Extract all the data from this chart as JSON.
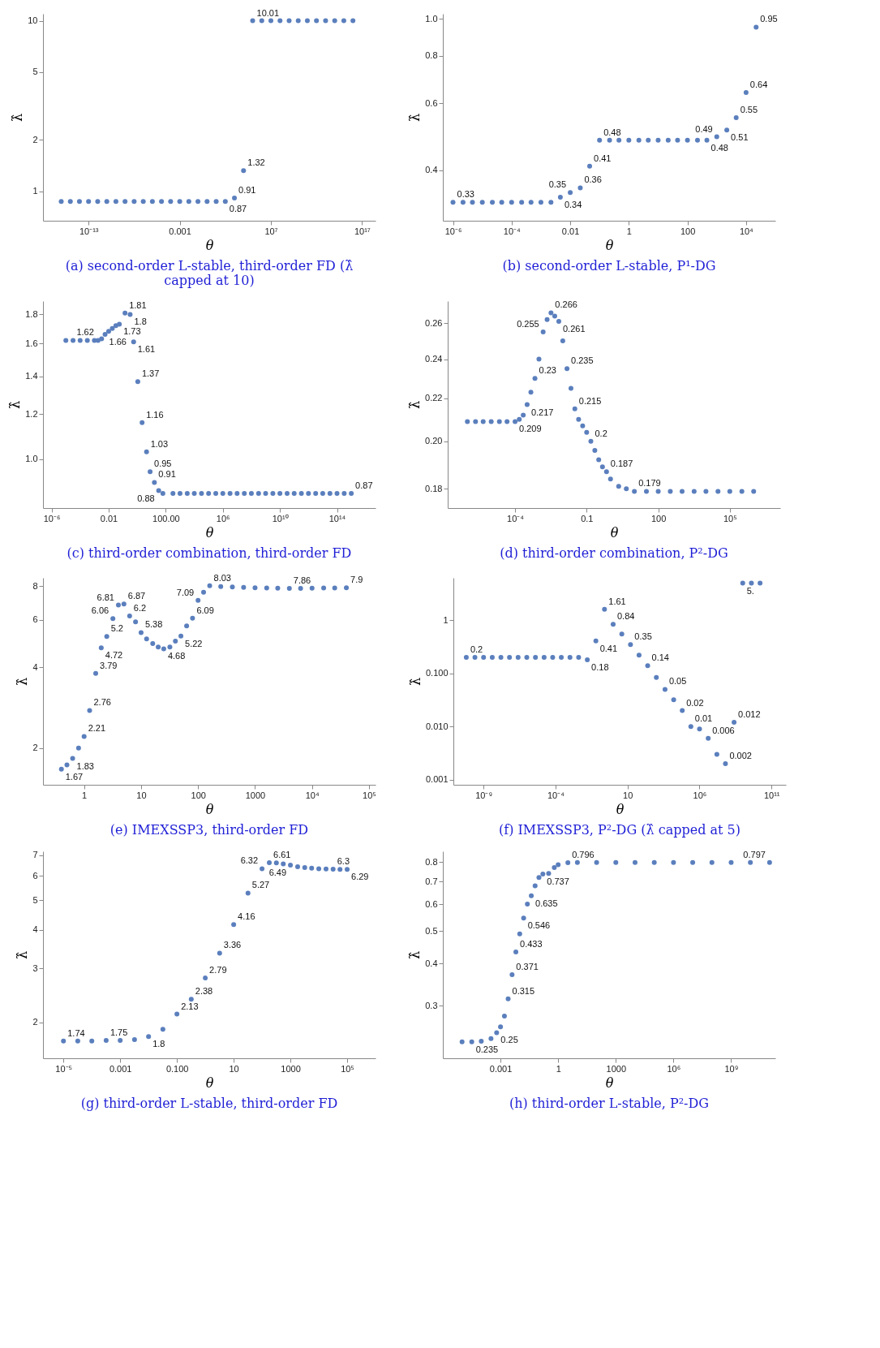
{
  "chart_data": [
    {
      "type": "scatter",
      "title": "(a) second-order L-stable, third-order FD (λ̂ capped at 10)",
      "xlabel": "θ",
      "ylabel": "λ̂",
      "log": "xy",
      "marker": "circle",
      "color": "#5b7fbd",
      "x": [
        1e-16,
        1e-15,
        1e-14,
        1e-13,
        1e-12,
        1e-11,
        1e-10,
        1e-09,
        1e-08,
        1e-07,
        1e-06,
        1e-05,
        0.0001,
        0.001,
        0.01,
        0.1,
        1,
        10,
        100,
        1000,
        10000.0,
        100000.0,
        1000000.0,
        10000000.0,
        100000000.0,
        1000000000.0,
        10000000000.0,
        100000000000.0,
        1000000000000.0,
        10000000000000.0,
        100000000000000.0,
        1000000000000000.0,
        1e+16
      ],
      "values": [
        0.87,
        0.87,
        0.87,
        0.87,
        0.87,
        0.87,
        0.87,
        0.87,
        0.87,
        0.87,
        0.87,
        0.87,
        0.87,
        0.87,
        0.87,
        0.87,
        0.87,
        0.87,
        0.87,
        0.91,
        1.32,
        10.01,
        10.01,
        10.01,
        10.01,
        10.01,
        10.01,
        10.01,
        10.01,
        10.01,
        10.01,
        10.01,
        10.01
      ],
      "xlim": [
        1e-18,
        3e+18
      ],
      "ylim": [
        0.67,
        11
      ],
      "xticks": [
        {
          "value": 1e-13,
          "label": "10⁻¹³"
        },
        0.001,
        {
          "value": 10000000.0,
          "label": "10⁷"
        },
        {
          "value": 1e+17,
          "label": "10¹⁷"
        }
      ],
      "yticks": [
        1,
        2,
        5,
        10
      ],
      "annotations": [
        {
          "text": "10.01",
          "x": 100000.0,
          "y": 10.01
        },
        {
          "text": "1.32",
          "x": 10000.0,
          "y": 1.32
        },
        {
          "text": "0.91",
          "x": 1000,
          "y": 0.91
        },
        {
          "text": "0.87",
          "x": 100,
          "y": 0.87
        }
      ]
    },
    {
      "type": "scatter",
      "title": "(b) second-order L-stable, P¹-DG",
      "xlabel": "θ",
      "ylabel": "λ̂",
      "log": "xy",
      "marker": "circle",
      "color": "#5b7fbd",
      "x": [
        1e-06,
        2.2e-06,
        4.6e-06,
        1e-05,
        2.2e-05,
        4.6e-05,
        0.0001,
        0.00022,
        0.00046,
        0.001,
        0.0022,
        0.0046,
        0.01,
        0.022,
        0.046,
        0.1,
        0.22,
        0.46,
        1,
        2.2,
        4.6,
        10,
        22,
        46,
        100,
        220,
        460,
        1000,
        2200,
        4600,
        10000.0,
        22000.0
      ],
      "values": [
        0.33,
        0.33,
        0.33,
        0.33,
        0.33,
        0.33,
        0.33,
        0.33,
        0.33,
        0.33,
        0.33,
        0.34,
        0.35,
        0.36,
        0.41,
        0.48,
        0.48,
        0.48,
        0.48,
        0.48,
        0.48,
        0.48,
        0.48,
        0.48,
        0.48,
        0.48,
        0.48,
        0.49,
        0.51,
        0.55,
        0.64,
        0.95
      ],
      "xlim": [
        4.5e-07,
        100000.0
      ],
      "ylim": [
        0.295,
        1.03
      ],
      "xticks": [
        {
          "value": 1e-06,
          "label": "10⁻⁶"
        },
        {
          "value": 0.0001,
          "label": "10⁻⁴"
        },
        0.01,
        1,
        100,
        {
          "value": 10000.0,
          "label": "10⁴"
        }
      ],
      "yticks": [
        0.4,
        0.6,
        0.8,
        {
          "value": 1,
          "label": "1.0"
        }
      ],
      "annotations": [
        {
          "text": "0.33",
          "x": 1e-06,
          "y": 0.33
        },
        {
          "text": "0.34",
          "x": 0.0046,
          "y": 0.34
        },
        {
          "text": "0.35",
          "x": 0.01,
          "y": 0.35
        },
        {
          "text": "0.36",
          "x": 0.022,
          "y": 0.36
        },
        {
          "text": "0.41",
          "x": 0.046,
          "y": 0.41
        },
        {
          "text": "0.48",
          "x": 0.1,
          "y": 0.48
        },
        {
          "text": "0.48",
          "x": 460,
          "y": 0.48
        },
        {
          "text": "0.49",
          "x": 1000,
          "y": 0.49
        },
        {
          "text": "0.51",
          "x": 2200,
          "y": 0.51
        },
        {
          "text": "0.55",
          "x": 4600,
          "y": 0.55
        },
        {
          "text": "0.64",
          "x": 10000.0,
          "y": 0.64
        },
        {
          "text": "0.95",
          "x": 22000.0,
          "y": 0.95
        }
      ]
    },
    {
      "type": "scatter",
      "title": "(c) third-order combination, third-order FD",
      "xlabel": "θ",
      "ylabel": "λ̂",
      "log": "xy",
      "marker": "circle",
      "color": "#5b7fbd",
      "x": [
        1e-05,
        3.2e-05,
        0.0001,
        0.00032,
        0.001,
        0.0018,
        0.0032,
        0.0056,
        0.01,
        0.018,
        0.032,
        0.056,
        0.14,
        0.32,
        0.56,
        1.1,
        2.2,
        4.5,
        8,
        16,
        32,
        63,
        320,
        1000,
        3200,
        10000.0,
        32000.0,
        100000.0,
        320000.0,
        1000000.0,
        3200000.0,
        10000000.0,
        32000000.0,
        100000000.0,
        320000000.0,
        1000000000.0,
        3200000000.0,
        10000000000.0,
        32000000000.0,
        100000000000.0,
        320000000000.0,
        1000000000000.0,
        3200000000000.0,
        10000000000000.0,
        32000000000000.0,
        100000000000000.0,
        320000000000000.0,
        1000000000000000.0
      ],
      "values": [
        1.62,
        1.62,
        1.62,
        1.62,
        1.62,
        1.62,
        1.63,
        1.66,
        1.68,
        1.7,
        1.72,
        1.73,
        1.81,
        1.8,
        1.61,
        1.37,
        1.16,
        1.03,
        0.95,
        0.91,
        0.88,
        0.87,
        0.87,
        0.87,
        0.87,
        0.87,
        0.87,
        0.87,
        0.87,
        0.87,
        0.87,
        0.87,
        0.87,
        0.87,
        0.87,
        0.87,
        0.87,
        0.87,
        0.87,
        0.87,
        0.87,
        0.87,
        0.87,
        0.87,
        0.87,
        0.87,
        0.87,
        0.87
      ],
      "xlim": [
        2.5e-07,
        5e+16
      ],
      "ylim": [
        0.82,
        1.9
      ],
      "xticks": [
        {
          "value": 1e-06,
          "label": "10⁻⁶"
        },
        0.01,
        {
          "value": 100,
          "label": "100.00"
        },
        {
          "value": 1000000.0,
          "label": "10⁶"
        },
        {
          "value": 10000000000.0,
          "label": "10¹⁰"
        },
        {
          "value": 100000000000000.0,
          "label": "10¹⁴"
        }
      ],
      "yticks": [
        {
          "value": 1,
          "label": "1.0"
        },
        1.2,
        1.4,
        1.6,
        1.8
      ],
      "annotations": [
        {
          "text": "1.81",
          "x": 0.14,
          "y": 1.81
        },
        {
          "text": "1.8",
          "x": 0.32,
          "y": 1.8
        },
        {
          "text": "1.66",
          "x": 0.0056,
          "y": 1.66
        },
        {
          "text": "1.62",
          "x": 0.0018,
          "y": 1.62
        },
        {
          "text": "1.73",
          "x": 0.056,
          "y": 1.73
        },
        {
          "text": "1.61",
          "x": 0.56,
          "y": 1.61
        },
        {
          "text": "1.37",
          "x": 1.1,
          "y": 1.37
        },
        {
          "text": "1.16",
          "x": 2.2,
          "y": 1.16
        },
        {
          "text": "1.03",
          "x": 4.5,
          "y": 1.03
        },
        {
          "text": "0.95",
          "x": 8,
          "y": 0.95
        },
        {
          "text": "0.91",
          "x": 16,
          "y": 0.91
        },
        {
          "text": "0.88",
          "x": 32,
          "y": 0.88
        },
        {
          "text": "0.87",
          "x": 1000000000000000.0,
          "y": 0.87
        }
      ]
    },
    {
      "type": "scatter",
      "title": "(d) third-order combination, P²-DG",
      "xlabel": "θ",
      "ylabel": "λ̂",
      "log": "xy",
      "marker": "circle",
      "color": "#5b7fbd",
      "x": [
        1e-06,
        2.2e-06,
        4.6e-06,
        1e-05,
        2.2e-05,
        4.6e-05,
        0.0001,
        0.00015,
        0.00022,
        0.00032,
        0.00046,
        0.00068,
        0.001,
        0.0015,
        0.0022,
        0.0032,
        0.0046,
        0.0068,
        0.01,
        0.015,
        0.022,
        0.032,
        0.046,
        0.068,
        0.1,
        0.15,
        0.22,
        0.32,
        0.46,
        0.68,
        1,
        2.2,
        4.6,
        10,
        32,
        100,
        320,
        1000,
        3200,
        10000.0,
        32000.0,
        100000.0,
        320000.0,
        1000000.0
      ],
      "values": [
        0.209,
        0.209,
        0.209,
        0.209,
        0.209,
        0.209,
        0.209,
        0.21,
        0.212,
        0.217,
        0.223,
        0.23,
        0.24,
        0.255,
        0.262,
        0.266,
        0.264,
        0.261,
        0.25,
        0.235,
        0.225,
        0.215,
        0.21,
        0.207,
        0.204,
        0.2,
        0.196,
        0.192,
        0.189,
        0.187,
        0.184,
        0.181,
        0.18,
        0.179,
        0.179,
        0.179,
        0.179,
        0.179,
        0.179,
        0.179,
        0.179,
        0.179,
        0.179,
        0.179
      ],
      "xlim": [
        1.5e-07,
        13000000.0
      ],
      "ylim": [
        0.1725,
        0.273
      ],
      "xticks": [
        {
          "value": 0.0001,
          "label": "10⁻⁴"
        },
        0.1,
        100,
        {
          "value": 100000.0,
          "label": "10⁵"
        }
      ],
      "yticks": [
        0.18,
        {
          "value": 0.2,
          "label": "0.20"
        },
        0.22,
        0.24,
        0.26
      ],
      "annotations": [
        {
          "text": "0.266",
          "x": 0.0032,
          "y": 0.266
        },
        {
          "text": "0.261",
          "x": 0.0068,
          "y": 0.261
        },
        {
          "text": "0.255",
          "x": 0.0015,
          "y": 0.255
        },
        {
          "text": "0.23",
          "x": 0.00068,
          "y": 0.23
        },
        {
          "text": "0.217",
          "x": 0.00032,
          "y": 0.217
        },
        {
          "text": "0.209",
          "x": 0.0001,
          "y": 0.209
        },
        {
          "text": "0.235",
          "x": 0.015,
          "y": 0.235
        },
        {
          "text": "0.215",
          "x": 0.032,
          "y": 0.215
        },
        {
          "text": "0.2",
          "x": 0.15,
          "y": 0.2
        },
        {
          "text": "0.187",
          "x": 0.68,
          "y": 0.187
        },
        {
          "text": "0.179",
          "x": 10,
          "y": 0.179
        }
      ]
    },
    {
      "type": "scatter",
      "title": "(e) IMEXSSP3, third-order FD",
      "xlabel": "θ",
      "ylabel": "λ̂",
      "log": "xy",
      "marker": "circle",
      "color": "#5b7fbd",
      "x": [
        0.4,
        0.5,
        0.63,
        0.8,
        1,
        1.25,
        1.6,
        2,
        2.5,
        3.2,
        4,
        5,
        6.3,
        8,
        10,
        12.5,
        16,
        20,
        25,
        32,
        40,
        50,
        63,
        80,
        100,
        125,
        160,
        250,
        400,
        630,
        1000,
        1600,
        2500,
        4000,
        6300,
        10000,
        16000,
        25000,
        40000
      ],
      "values": [
        1.67,
        1.73,
        1.83,
        2.0,
        2.21,
        2.76,
        3.79,
        4.72,
        5.2,
        6.06,
        6.81,
        6.87,
        6.2,
        5.9,
        5.38,
        5.1,
        4.9,
        4.75,
        4.68,
        4.75,
        5.0,
        5.22,
        5.7,
        6.09,
        7.09,
        7.6,
        8.03,
        7.98,
        7.95,
        7.92,
        7.9,
        7.88,
        7.87,
        7.86,
        7.86,
        7.87,
        7.88,
        7.89,
        7.9
      ],
      "xlim": [
        0.19,
        130000.0
      ],
      "ylim": [
        1.46,
        8.6
      ],
      "xticks": [
        1,
        10,
        100,
        1000,
        {
          "value": 10000.0,
          "label": "10⁴"
        },
        {
          "value": 100000.0,
          "label": "10⁵"
        }
      ],
      "yticks": [
        2,
        4,
        6,
        8
      ],
      "annotations": [
        {
          "text": "1.67",
          "x": 0.4,
          "y": 1.67
        },
        {
          "text": "1.83",
          "x": 0.63,
          "y": 1.83
        },
        {
          "text": "2.21",
          "x": 1,
          "y": 2.21
        },
        {
          "text": "2.76",
          "x": 1.25,
          "y": 2.76
        },
        {
          "text": "3.79",
          "x": 1.6,
          "y": 3.79
        },
        {
          "text": "4.72",
          "x": 2,
          "y": 4.72
        },
        {
          "text": "5.2",
          "x": 2.5,
          "y": 5.2
        },
        {
          "text": "6.06",
          "x": 3.2,
          "y": 6.06
        },
        {
          "text": "6.81",
          "x": 4,
          "y": 6.81
        },
        {
          "text": "6.87",
          "x": 5,
          "y": 6.87
        },
        {
          "text": "6.2",
          "x": 6.3,
          "y": 6.2
        },
        {
          "text": "5.38",
          "x": 10,
          "y": 5.38
        },
        {
          "text": "4.68",
          "x": 25,
          "y": 4.68
        },
        {
          "text": "5.22",
          "x": 50,
          "y": 5.22
        },
        {
          "text": "6.09",
          "x": 80,
          "y": 6.09
        },
        {
          "text": "7.09",
          "x": 100,
          "y": 7.09
        },
        {
          "text": "8.03",
          "x": 160,
          "y": 8.03
        },
        {
          "text": "7.86",
          "x": 4000,
          "y": 7.86
        },
        {
          "text": "7.9",
          "x": 40000,
          "y": 7.9
        }
      ]
    },
    {
      "type": "scatter",
      "title": "(f) IMEXSSP3, P²-DG (λ̂ capped at 5)",
      "xlabel": "θ",
      "ylabel": "λ̂",
      "log": "xy",
      "marker": "circle",
      "color": "#5b7fbd",
      "x": [
        6.3e-11,
        2.5e-10,
        1e-09,
        4e-09,
        1.6e-08,
        6.3e-08,
        2.5e-07,
        1e-06,
        4e-06,
        1.6e-05,
        6.3e-05,
        0.00025,
        0.001,
        0.004,
        0.016,
        0.063,
        0.25,
        1,
        4,
        16,
        63,
        250,
        1000,
        4000,
        16000,
        63000,
        250000.0,
        1000000.0,
        4000000.0,
        16000000.0,
        63000000.0,
        250000000.0,
        1000000000.0,
        4000000000.0,
        16000000000.0
      ],
      "values": [
        0.2,
        0.2,
        0.2,
        0.2,
        0.2,
        0.2,
        0.2,
        0.2,
        0.2,
        0.2,
        0.2,
        0.2,
        0.2,
        0.2,
        0.18,
        0.41,
        1.61,
        0.84,
        0.55,
        0.35,
        0.22,
        0.14,
        0.084,
        0.05,
        0.032,
        0.02,
        0.01,
        0.009,
        0.006,
        0.003,
        0.002,
        0.012,
        5,
        5,
        5
      ],
      "xlim": [
        8e-12,
        1000000000000.0
      ],
      "ylim": [
        0.0008,
        6.3
      ],
      "xticks": [
        {
          "value": 1e-09,
          "label": "10⁻⁹"
        },
        {
          "value": 0.0001,
          "label": "10⁻⁴"
        },
        10,
        {
          "value": 1000000.0,
          "label": "10⁶"
        },
        {
          "value": 100000000000.0,
          "label": "10¹¹"
        }
      ],
      "yticks": [
        0.001,
        {
          "value": 0.01,
          "label": "0.010"
        },
        {
          "value": 0.1,
          "label": "0.100"
        },
        1
      ],
      "annotations": [
        {
          "text": "5.",
          "x": 1000000000.0,
          "y": 5
        },
        {
          "text": "1.61",
          "x": 0.25,
          "y": 1.61
        },
        {
          "text": "0.84",
          "x": 1,
          "y": 0.84
        },
        {
          "text": "0.41",
          "x": 0.063,
          "y": 0.41
        },
        {
          "text": "0.35",
          "x": 16,
          "y": 0.35
        },
        {
          "text": "0.2",
          "x": 6.3e-11,
          "y": 0.2
        },
        {
          "text": "0.18",
          "x": 0.016,
          "y": 0.18
        },
        {
          "text": "0.14",
          "x": 250,
          "y": 0.14
        },
        {
          "text": "0.05",
          "x": 4000,
          "y": 0.05
        },
        {
          "text": "0.02",
          "x": 63000,
          "y": 0.02
        },
        {
          "text": "0.01",
          "x": 250000.0,
          "y": 0.01
        },
        {
          "text": "0.006",
          "x": 4000000.0,
          "y": 0.006
        },
        {
          "text": "0.002",
          "x": 63000000.0,
          "y": 0.002
        },
        {
          "text": "0.012",
          "x": 250000000.0,
          "y": 0.012
        }
      ]
    },
    {
      "type": "scatter",
      "title": "(g) third-order L-stable, third-order FD",
      "xlabel": "θ",
      "ylabel": "λ̂",
      "log": "xy",
      "marker": "circle",
      "color": "#5b7fbd",
      "x": [
        1e-05,
        3.2e-05,
        0.0001,
        0.00032,
        0.001,
        0.0032,
        0.01,
        0.032,
        0.1,
        0.32,
        1,
        3.2,
        10,
        32,
        100,
        180,
        320,
        560,
        1000,
        1800,
        3200,
        5600,
        10000.0,
        18000,
        32000,
        56000,
        100000.0
      ],
      "values": [
        1.74,
        1.74,
        1.74,
        1.75,
        1.75,
        1.76,
        1.8,
        1.9,
        2.13,
        2.38,
        2.79,
        3.36,
        4.16,
        5.27,
        6.32,
        6.61,
        6.6,
        6.55,
        6.49,
        6.42,
        6.38,
        6.35,
        6.32,
        6.31,
        6.3,
        6.29,
        6.29
      ],
      "xlim": [
        1.9e-06,
        1000000.0
      ],
      "ylim": [
        1.53,
        7.2
      ],
      "xticks": [
        {
          "value": 1e-05,
          "label": "10⁻⁵"
        },
        0.001,
        {
          "value": 0.1,
          "label": "0.100"
        },
        10,
        1000,
        {
          "value": 100000.0,
          "label": "10⁵"
        }
      ],
      "yticks": [
        2,
        3,
        4,
        5,
        6,
        7
      ],
      "annotations": [
        {
          "text": "1.74",
          "x": 1e-05,
          "y": 1.74
        },
        {
          "text": "1.75",
          "x": 0.00032,
          "y": 1.75
        },
        {
          "text": "1.8",
          "x": 0.01,
          "y": 1.8
        },
        {
          "text": "2.13",
          "x": 0.1,
          "y": 2.13
        },
        {
          "text": "2.38",
          "x": 0.32,
          "y": 2.38
        },
        {
          "text": "2.79",
          "x": 1,
          "y": 2.79
        },
        {
          "text": "3.36",
          "x": 3.2,
          "y": 3.36
        },
        {
          "text": "4.16",
          "x": 10,
          "y": 4.16
        },
        {
          "text": "5.27",
          "x": 32,
          "y": 5.27
        },
        {
          "text": "6.32",
          "x": 100,
          "y": 6.32
        },
        {
          "text": "6.61",
          "x": 180,
          "y": 6.61
        },
        {
          "text": "6.49",
          "x": 1000,
          "y": 6.49
        },
        {
          "text": "6.3",
          "x": 32000,
          "y": 6.3
        },
        {
          "text": "6.29",
          "x": 100000.0,
          "y": 6.29
        }
      ]
    },
    {
      "type": "scatter",
      "title": "(h) third-order L-stable, P²-DG",
      "xlabel": "θ",
      "ylabel": "λ̂",
      "log": "xy",
      "marker": "circle",
      "color": "#5b7fbd",
      "x": [
        1e-05,
        3.2e-05,
        0.0001,
        0.00032,
        0.00063,
        0.001,
        0.0016,
        0.0025,
        0.004,
        0.0063,
        0.01,
        0.016,
        0.025,
        0.04,
        0.063,
        0.1,
        0.16,
        0.32,
        0.63,
        1,
        3.2,
        10,
        100,
        1000,
        10000.0,
        100000.0,
        1000000.0,
        10000000.0,
        100000000.0,
        1000000000.0,
        10000000000.0,
        100000000000.0
      ],
      "values": [
        0.235,
        0.235,
        0.236,
        0.24,
        0.25,
        0.26,
        0.28,
        0.315,
        0.371,
        0.433,
        0.49,
        0.546,
        0.6,
        0.635,
        0.68,
        0.72,
        0.737,
        0.74,
        0.77,
        0.785,
        0.796,
        0.797,
        0.797,
        0.797,
        0.797,
        0.797,
        0.797,
        0.797,
        0.797,
        0.797,
        0.797,
        0.797
      ],
      "xlim": [
        1e-06,
        200000000000.0
      ],
      "ylim": [
        0.21,
        0.86
      ],
      "xticks": [
        0.001,
        1,
        1000,
        {
          "value": 1000000.0,
          "label": "10⁶"
        },
        {
          "value": 1000000000.0,
          "label": "10⁹"
        }
      ],
      "yticks": [
        0.3,
        0.4,
        0.5,
        0.6,
        0.7,
        0.8
      ],
      "annotations": [
        {
          "text": "0.235",
          "x": 3.2e-05,
          "y": 0.235
        },
        {
          "text": "0.25",
          "x": 0.00063,
          "y": 0.25
        },
        {
          "text": "0.315",
          "x": 0.0025,
          "y": 0.315
        },
        {
          "text": "0.371",
          "x": 0.004,
          "y": 0.371
        },
        {
          "text": "0.433",
          "x": 0.0063,
          "y": 0.433
        },
        {
          "text": "0.546",
          "x": 0.016,
          "y": 0.546
        },
        {
          "text": "0.635",
          "x": 0.04,
          "y": 0.635
        },
        {
          "text": "0.737",
          "x": 0.16,
          "y": 0.737
        },
        {
          "text": "0.796",
          "x": 3.2,
          "y": 0.796
        },
        {
          "text": "0.797",
          "x": 100000000000.0,
          "y": 0.797
        }
      ]
    }
  ]
}
